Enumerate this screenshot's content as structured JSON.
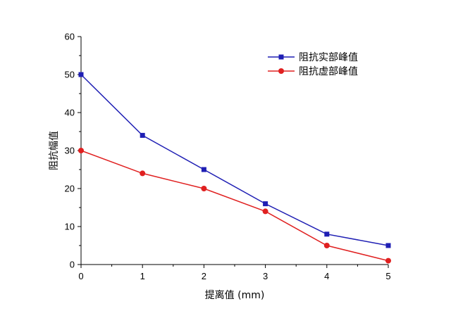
{
  "chart_data": {
    "type": "line",
    "title": "",
    "xlabel": "提离值 (mm)",
    "ylabel": "阻抗幅值",
    "x": [
      0,
      1,
      2,
      3,
      4,
      5
    ],
    "xlim": [
      0,
      5
    ],
    "ylim": [
      0,
      60
    ],
    "xticks": [
      "0",
      "1",
      "2",
      "3",
      "4",
      "5"
    ],
    "yticks": [
      "0",
      "10",
      "20",
      "30",
      "40",
      "50",
      "60"
    ],
    "grid": false,
    "legend_position": "top-right",
    "series": [
      {
        "name": "阻抗实部峰值",
        "values": [
          50,
          34,
          25,
          16,
          8,
          5
        ],
        "color": "#1f1fb4",
        "marker": "square"
      },
      {
        "name": "阻抗虚部峰值",
        "values": [
          30,
          24,
          20,
          14,
          5,
          1
        ],
        "color": "#e02020",
        "marker": "circle"
      }
    ]
  }
}
